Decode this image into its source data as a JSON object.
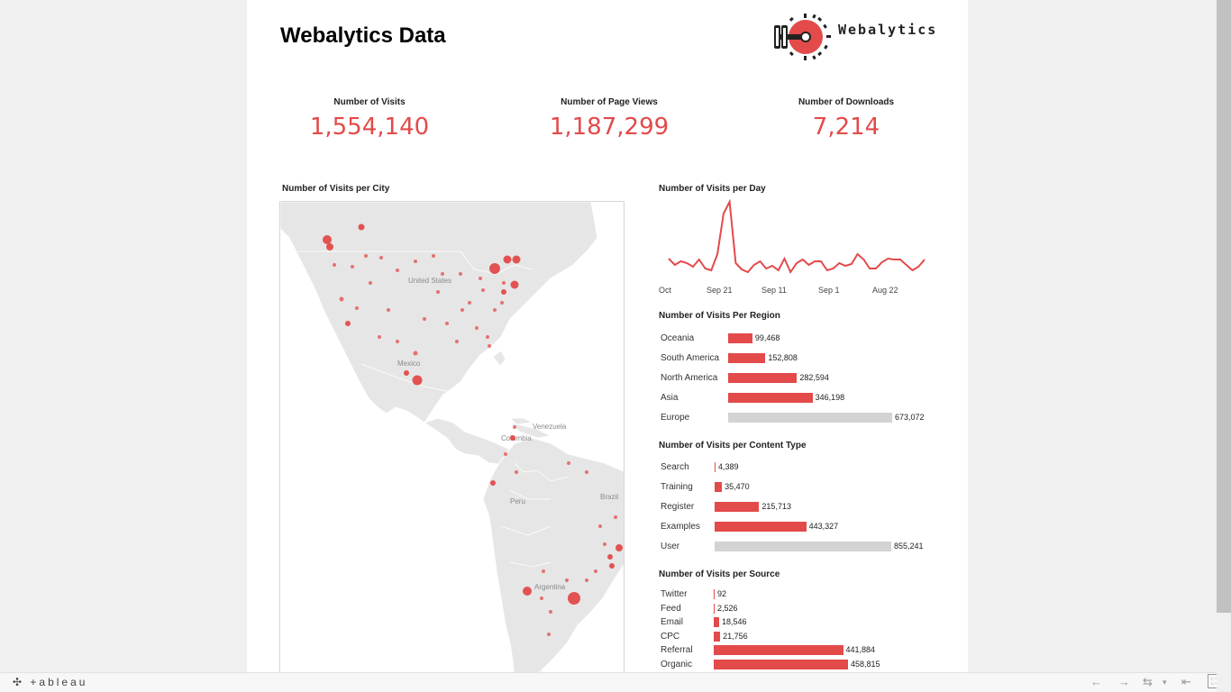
{
  "header": {
    "title": "Webalytics Data",
    "logo_text": "Webalytics"
  },
  "kpis": [
    {
      "label": "Number of Visits",
      "value": "1,554,140"
    },
    {
      "label": "Number of Page Views",
      "value": "1,187,299"
    },
    {
      "label": "Number of Downloads",
      "value": "7,214"
    }
  ],
  "map": {
    "title": "Number of Visits per City",
    "labels": [
      "United States",
      "Mexico",
      "Venezuela",
      "Colombia",
      "Peru",
      "Brazil",
      "Argentina"
    ]
  },
  "colors": {
    "accent": "#e34a4a",
    "highlight_bar": "#d3d3d3",
    "map_land": "#e6e6e6"
  },
  "chart_data": [
    {
      "type": "line",
      "title": "Number of Visits per Day",
      "x_tick_labels": [
        "Oct",
        "Sep 21",
        "Sep 11",
        "Sep 1",
        "Aug 22"
      ],
      "values": [
        45,
        38,
        42,
        40,
        36,
        44,
        34,
        32,
        50,
        95,
        108,
        40,
        33,
        30,
        38,
        42,
        34,
        37,
        32,
        45,
        30,
        40,
        44,
        38,
        42,
        42,
        32,
        34,
        40,
        37,
        39,
        50,
        44,
        34,
        34,
        41,
        45,
        44,
        44,
        38,
        32,
        36,
        44
      ]
    },
    {
      "type": "bar",
      "title": "Number of Visits Per Region",
      "categories": [
        "Oceania",
        "South America",
        "North America",
        "Asia",
        "Europe"
      ],
      "values": [
        99468,
        152808,
        282594,
        346198,
        673072
      ],
      "value_labels": [
        "99,468",
        "152,808",
        "282,594",
        "346,198",
        "673,072"
      ],
      "highlighted": "Europe"
    },
    {
      "type": "bar",
      "title": "Number of Visits per Content Type",
      "categories": [
        "Search",
        "Training",
        "Register",
        "Examples",
        "User"
      ],
      "values": [
        4389,
        35470,
        215713,
        443327,
        855241
      ],
      "value_labels": [
        "4,389",
        "35,470",
        "215,713",
        "443,327",
        "855,241"
      ],
      "highlighted": "User"
    },
    {
      "type": "bar",
      "title": "Number of Visits per Source",
      "categories": [
        "Twitter",
        "Feed",
        "Email",
        "CPC",
        "Referral",
        "Organic"
      ],
      "values": [
        92,
        2526,
        18546,
        21756,
        441884,
        458815
      ],
      "value_labels": [
        "92",
        "2,526",
        "18,546",
        "21,756",
        "441,884",
        "458,815"
      ],
      "highlighted": ""
    }
  ],
  "footer": {
    "brand": "+ableau"
  }
}
